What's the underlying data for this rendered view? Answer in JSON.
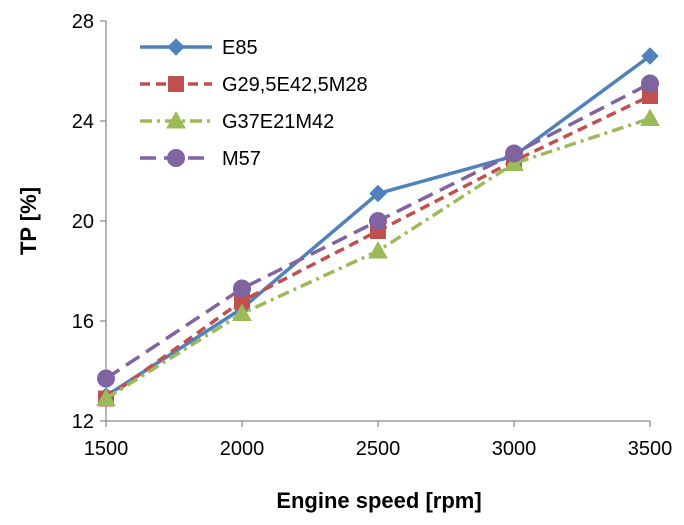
{
  "chart_data": {
    "type": "line",
    "title": "",
    "xlabel": "Engine speed [rpm]",
    "ylabel": "TP [%]",
    "x": [
      1500,
      2000,
      2500,
      3000,
      3500
    ],
    "xlim": [
      1500,
      3500
    ],
    "ylim": [
      12,
      28
    ],
    "x_ticks": [
      "1500",
      "2000",
      "2500",
      "3000",
      "3500"
    ],
    "y_ticks": [
      "12",
      "16",
      "20",
      "24",
      "28"
    ],
    "grid": false,
    "legend_position": "top-left",
    "series": [
      {
        "name": "E85",
        "values": [
          13.0,
          16.5,
          21.1,
          22.6,
          26.6
        ],
        "color": "#4F81BD",
        "dash": "solid",
        "marker": "diamond"
      },
      {
        "name": "G29,5E42,5M28",
        "values": [
          12.9,
          16.8,
          19.6,
          22.4,
          25.0
        ],
        "color": "#C0504D",
        "dash": "dashed",
        "marker": "square"
      },
      {
        "name": "G37E21M42",
        "values": [
          12.9,
          16.3,
          18.8,
          22.3,
          24.1
        ],
        "color": "#9BBB59",
        "dash": "dashdot",
        "marker": "triangle"
      },
      {
        "name": "M57",
        "values": [
          13.7,
          17.3,
          20.0,
          22.7,
          25.5
        ],
        "color": "#8064A2",
        "dash": "longdash",
        "marker": "circle"
      }
    ]
  }
}
